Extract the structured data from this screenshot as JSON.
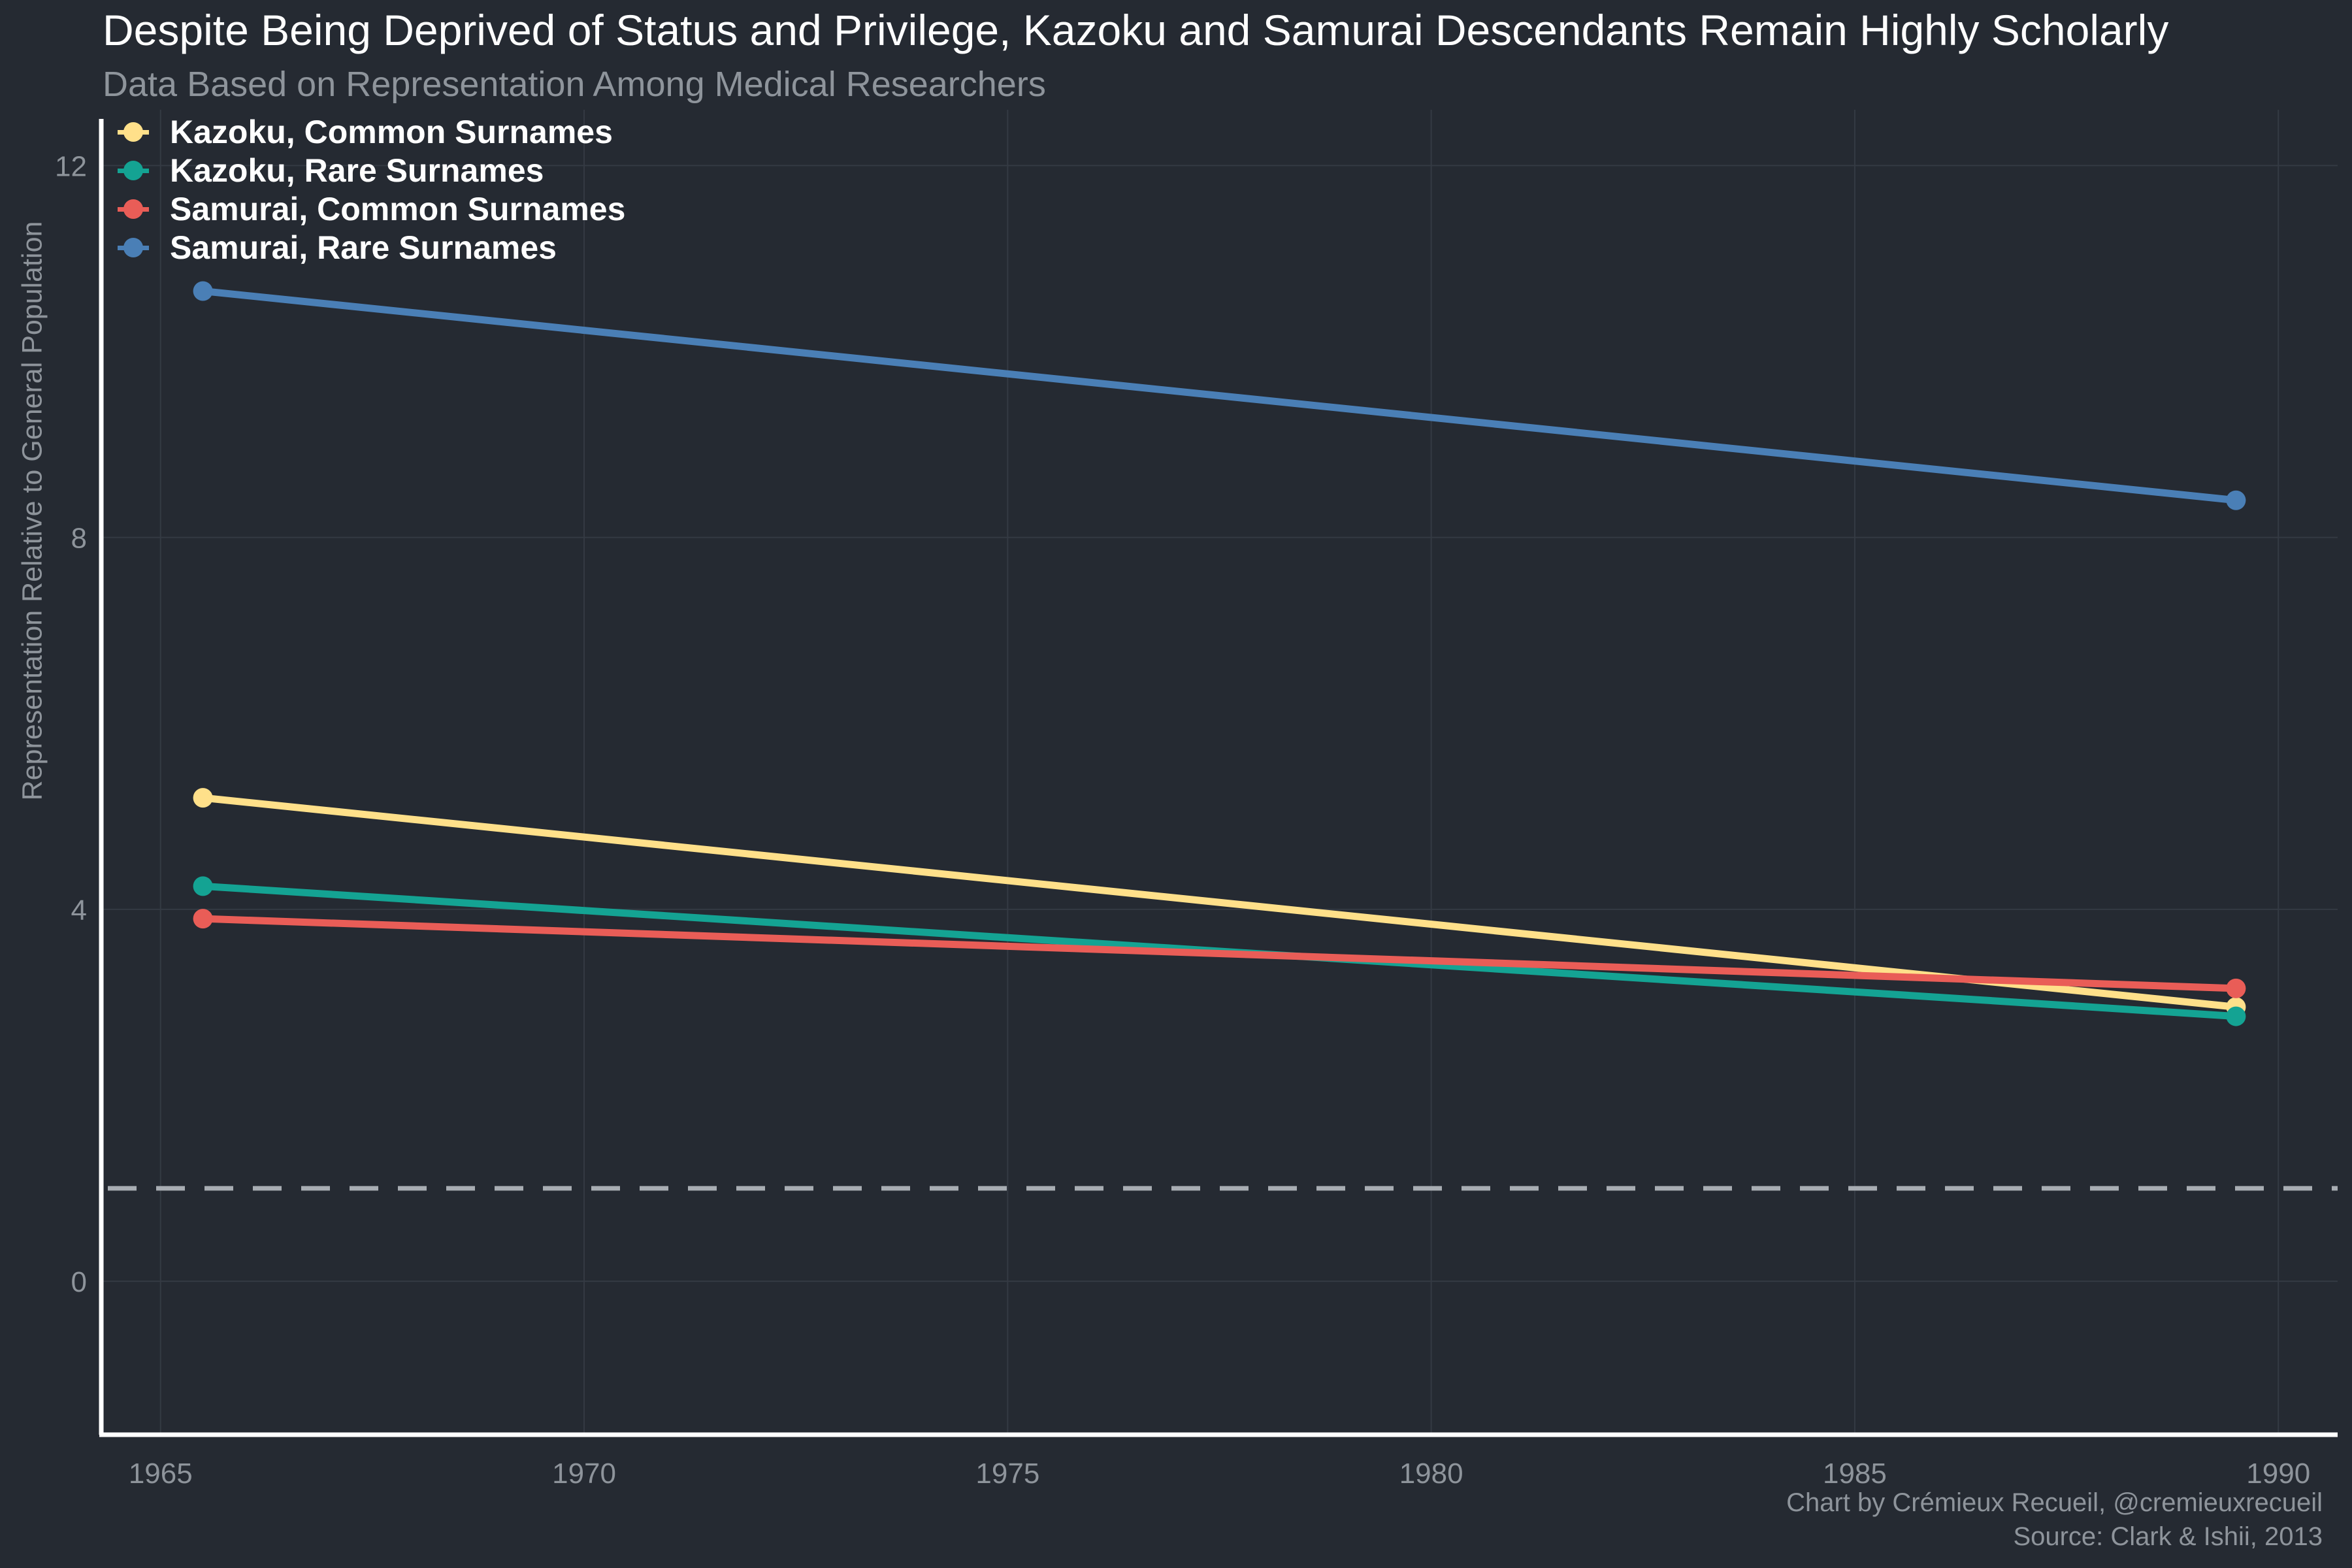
{
  "chart_data": {
    "type": "line",
    "title": "Despite Being Deprived of Status and Privilege, Kazoku and Samurai Descendants Remain Highly Scholarly",
    "subtitle": "Data Based on Representation Among Medical Researchers",
    "ylabel": "Representation Relative to General Population",
    "xlabel": "",
    "xlim": [
      1964.3,
      1990.7
    ],
    "ylim": [
      -1.65,
      12.6
    ],
    "xticks": [
      "1965",
      "1970",
      "1975",
      "1980",
      "1985",
      "1990"
    ],
    "yticks": [
      "0",
      "4",
      "8",
      "12"
    ],
    "grid": true,
    "legend_position": "top-left",
    "reference_line": {
      "y": 1,
      "style": "dashed",
      "color": "#a8adb3"
    },
    "x": [
      1965.5,
      1989.5
    ],
    "series": [
      {
        "name": "Kazoku, Common Surnames",
        "color": "#ffe08a",
        "values": [
          5.2,
          2.95
        ]
      },
      {
        "name": "Kazoku, Rare Surnames",
        "color": "#14a393",
        "values": [
          4.25,
          2.85
        ]
      },
      {
        "name": "Samurai, Common Surnames",
        "color": "#e95d57",
        "values": [
          3.9,
          3.15
        ]
      },
      {
        "name": "Samurai, Rare Surnames",
        "color": "#4a7fb6",
        "values": [
          10.65,
          8.4
        ]
      }
    ]
  },
  "caption": {
    "line1": "Chart by Crémieux Recueil, @cremieuxrecueil",
    "line2": "Source: Clark & Ishii, 2013"
  },
  "colors": {
    "background": "#252a32",
    "grid": "#343a43",
    "axis": "#ffffff",
    "muted_text": "#8e949b"
  }
}
